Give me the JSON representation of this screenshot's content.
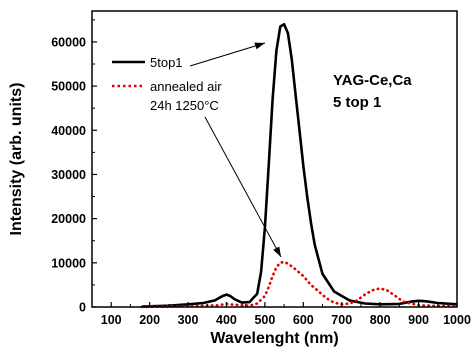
{
  "chart_data": {
    "type": "line",
    "xlabel": "Wavelenght (nm)",
    "ylabel": "Intensity (arb. units)",
    "xlim": [
      50,
      1000
    ],
    "ylim": [
      0,
      67000
    ],
    "x_ticks": [
      100,
      200,
      300,
      400,
      500,
      600,
      700,
      800,
      900,
      1000
    ],
    "y_ticks": [
      0,
      10000,
      20000,
      30000,
      40000,
      50000,
      60000
    ],
    "x_tick_labels": [
      "100",
      "200",
      "300",
      "400",
      "500",
      "600",
      "700",
      "800",
      "900",
      "1000"
    ],
    "y_tick_labels": [
      "0",
      "10000",
      "20000",
      "30000",
      "40000",
      "50000",
      "60000"
    ],
    "legend": {
      "position": "upper-left",
      "entries": [
        {
          "label": "5top1",
          "line2": ""
        },
        {
          "label": "annealed air",
          "line2": "24h 1250°C"
        }
      ]
    },
    "annotation": {
      "line1": "YAG-Ce,Ca",
      "line2": "5 top 1"
    },
    "series": [
      {
        "name": "5top1",
        "color": "#000000",
        "style": "solid",
        "x": [
          180,
          250,
          300,
          340,
          370,
          390,
          400,
          410,
          420,
          440,
          460,
          480,
          490,
          500,
          510,
          520,
          530,
          540,
          550,
          560,
          570,
          580,
          590,
          600,
          610,
          620,
          630,
          650,
          680,
          720,
          760,
          800,
          850,
          880,
          900,
          920,
          950,
          1000
        ],
        "y": [
          100,
          300,
          600,
          900,
          1500,
          2500,
          2800,
          2500,
          1800,
          1000,
          1100,
          3000,
          8000,
          18000,
          32000,
          47000,
          58000,
          63500,
          64000,
          62000,
          56000,
          48000,
          40000,
          32000,
          25000,
          19000,
          14000,
          7500,
          3500,
          1500,
          800,
          600,
          700,
          1200,
          1400,
          1300,
          900,
          600
        ]
      },
      {
        "name": "annealed air 24h 1250°C",
        "color": "#e60000",
        "style": "dotted",
        "x": [
          180,
          300,
          380,
          400,
          420,
          460,
          480,
          500,
          510,
          520,
          530,
          540,
          550,
          560,
          570,
          580,
          600,
          620,
          640,
          660,
          680,
          700,
          720,
          740,
          760,
          780,
          800,
          820,
          840,
          860,
          900,
          950,
          1000
        ],
        "y": [
          50,
          150,
          400,
          700,
          500,
          300,
          800,
          2500,
          4500,
          7000,
          9000,
          10000,
          10200,
          9800,
          9200,
          8500,
          7000,
          5000,
          3500,
          2000,
          1000,
          600,
          800,
          1500,
          2800,
          3800,
          4200,
          3700,
          2500,
          1200,
          400,
          250,
          200
        ]
      }
    ]
  }
}
